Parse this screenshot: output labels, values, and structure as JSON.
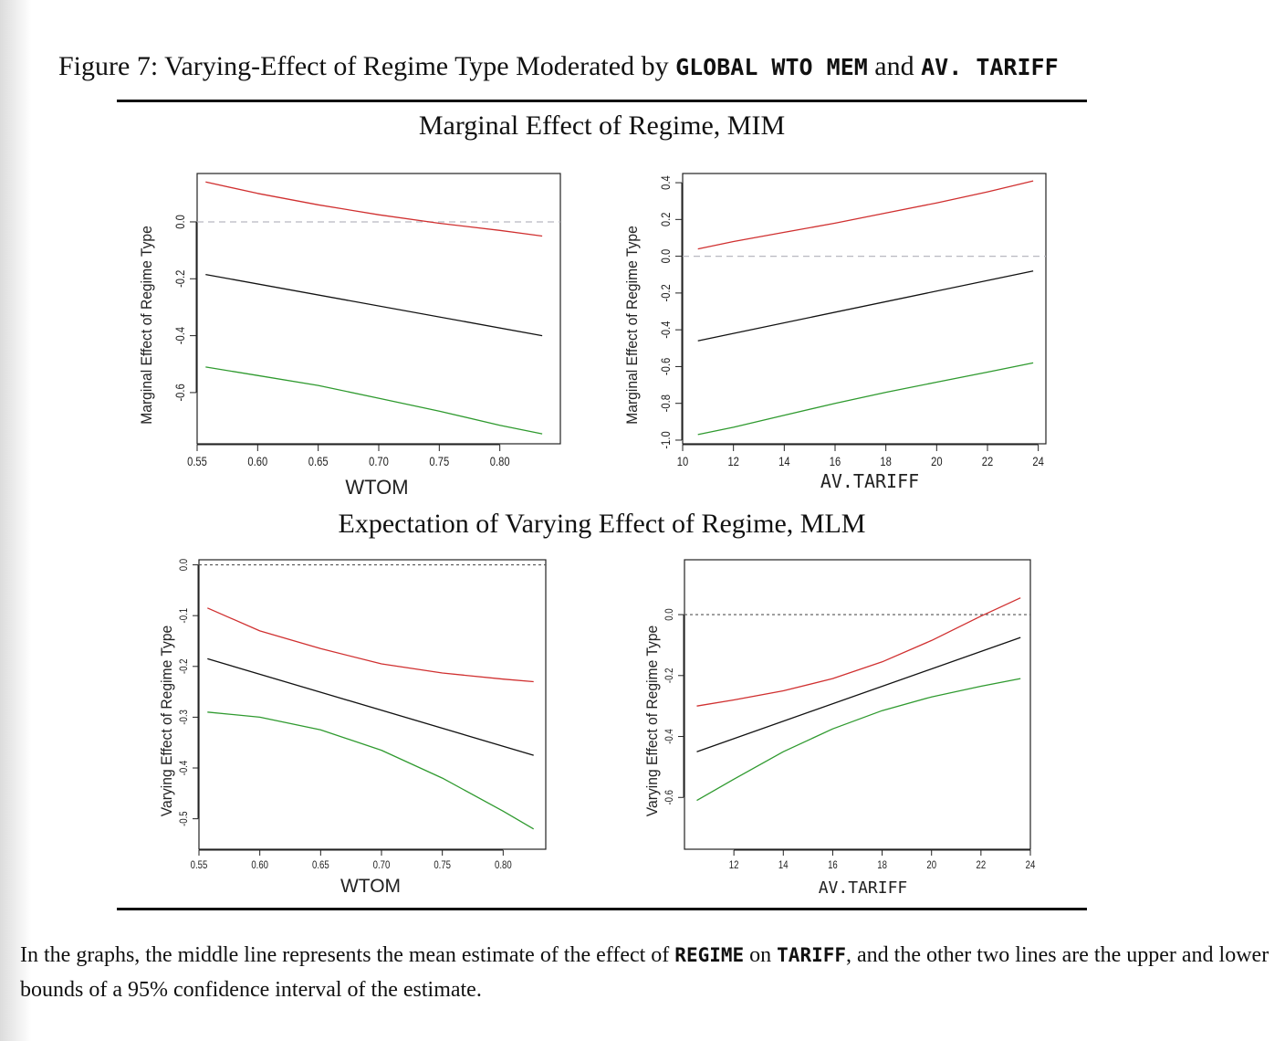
{
  "caption": {
    "prefix": "Figure 7: Varying-Effect of Regime Type Moderated by ",
    "var1": "GLOBAL WTO MEM",
    "and": " and ",
    "var2": "AV. TARIFF"
  },
  "section_titles": {
    "top": "Marginal Effect of Regime, MIM",
    "bottom": "Expectation of Varying Effect of Regime, MLM"
  },
  "footnote": {
    "part1": "In the graphs, the middle line represents the mean estimate of the effect of ",
    "var1": "REGIME",
    "part2": " on ",
    "var2": "TARIFF",
    "part3": ", and the other two lines are the upper and lower bounds of a 95% confidence interval of the estimate."
  },
  "colors": {
    "upper": "#d03030",
    "mean": "#111111",
    "lower": "#2f9a2f",
    "ref": "#b8b8c0",
    "ref_dark": "#555555"
  },
  "chart_data": [
    {
      "type": "line",
      "xlabel": "WTOM",
      "ylabel": "Marginal Effect of Regime Type",
      "xlim": [
        0.55,
        0.85
      ],
      "ylim": [
        -0.78,
        0.17
      ],
      "xticks": [
        0.55,
        0.6,
        0.65,
        0.7,
        0.75,
        0.8
      ],
      "xtick_labels": [
        "0.55",
        "0.60",
        "0.65",
        "0.70",
        "0.75",
        "0.80"
      ],
      "yticks": [
        -0.6,
        -0.4,
        -0.2,
        0.0
      ],
      "ytick_labels": [
        "-0.6",
        "-0.4",
        "-0.2",
        "0.0"
      ],
      "reference_line": 0.0,
      "series": [
        {
          "role": "upper",
          "x": [
            0.557,
            0.6,
            0.65,
            0.7,
            0.75,
            0.8,
            0.835
          ],
          "y": [
            0.14,
            0.1,
            0.06,
            0.025,
            -0.005,
            -0.03,
            -0.05
          ]
        },
        {
          "role": "mean",
          "x": [
            0.557,
            0.835
          ],
          "y": [
            -0.185,
            -0.4
          ]
        },
        {
          "role": "lower",
          "x": [
            0.557,
            0.6,
            0.65,
            0.7,
            0.75,
            0.8,
            0.835
          ],
          "y": [
            -0.51,
            -0.54,
            -0.575,
            -0.62,
            -0.665,
            -0.715,
            -0.745
          ]
        }
      ]
    },
    {
      "type": "line",
      "xlabel": "AV.TARIFF",
      "ylabel": "Marginal Effect of Regime Type",
      "xlim": [
        10,
        24.3
      ],
      "ylim": [
        -1.02,
        0.45
      ],
      "xticks": [
        10,
        12,
        14,
        16,
        18,
        20,
        22,
        24
      ],
      "xtick_labels": [
        "10",
        "12",
        "14",
        "16",
        "18",
        "20",
        "22",
        "24"
      ],
      "yticks": [
        -1.0,
        -0.8,
        -0.6,
        -0.4,
        -0.2,
        0.0,
        0.2,
        0.4
      ],
      "ytick_labels": [
        "-1.0",
        "-0.8",
        "-0.6",
        "-0.4",
        "-0.2",
        "0.0",
        "0.2",
        "0.4"
      ],
      "reference_line": 0.0,
      "series": [
        {
          "role": "upper",
          "x": [
            10.6,
            12,
            14,
            16,
            18,
            20,
            22,
            23.8
          ],
          "y": [
            0.04,
            0.08,
            0.13,
            0.18,
            0.235,
            0.29,
            0.35,
            0.41
          ]
        },
        {
          "role": "mean",
          "x": [
            10.6,
            23.8
          ],
          "y": [
            -0.46,
            -0.08
          ]
        },
        {
          "role": "lower",
          "x": [
            10.6,
            12,
            14,
            16,
            18,
            20,
            22,
            23.8
          ],
          "y": [
            -0.97,
            -0.93,
            -0.865,
            -0.8,
            -0.74,
            -0.685,
            -0.63,
            -0.58
          ]
        }
      ]
    },
    {
      "type": "line",
      "xlabel": "WTOM",
      "ylabel": "Varying Effect of Regime Type",
      "xlim": [
        0.55,
        0.835
      ],
      "ylim": [
        -0.56,
        0.01
      ],
      "xticks": [
        0.55,
        0.6,
        0.65,
        0.7,
        0.75,
        0.8
      ],
      "xtick_labels": [
        "0.55",
        "0.60",
        "0.65",
        "0.70",
        "0.75",
        "0.80"
      ],
      "yticks": [
        -0.5,
        -0.4,
        -0.3,
        -0.2,
        -0.1,
        0.0
      ],
      "ytick_labels": [
        "-0.5",
        "-0.4",
        "-0.3",
        "-0.2",
        "-0.1",
        "0.0"
      ],
      "reference_line": 0.0,
      "series": [
        {
          "role": "upper",
          "x": [
            0.557,
            0.6,
            0.65,
            0.7,
            0.75,
            0.8,
            0.825
          ],
          "y": [
            -0.085,
            -0.13,
            -0.165,
            -0.195,
            -0.213,
            -0.225,
            -0.23
          ]
        },
        {
          "role": "mean",
          "x": [
            0.557,
            0.825
          ],
          "y": [
            -0.185,
            -0.375
          ]
        },
        {
          "role": "lower",
          "x": [
            0.557,
            0.6,
            0.65,
            0.7,
            0.75,
            0.8,
            0.825
          ],
          "y": [
            -0.29,
            -0.3,
            -0.325,
            -0.365,
            -0.42,
            -0.485,
            -0.52
          ]
        }
      ]
    },
    {
      "type": "line",
      "xlabel": "AV.TARIFF",
      "ylabel": "Varying Effect of Regime Type",
      "xlim": [
        10,
        24
      ],
      "ylim": [
        -0.77,
        0.18
      ],
      "xticks": [
        12,
        14,
        16,
        18,
        20,
        22,
        24
      ],
      "xtick_labels": [
        "12",
        "14",
        "16",
        "18",
        "20",
        "22",
        "24"
      ],
      "yticks": [
        -0.6,
        -0.4,
        -0.2,
        0.0
      ],
      "ytick_labels": [
        "-0.6",
        "-0.4",
        "-0.2",
        "0.0"
      ],
      "reference_line": 0.0,
      "series": [
        {
          "role": "upper",
          "x": [
            10.5,
            12,
            14,
            16,
            18,
            20,
            22,
            23.6
          ],
          "y": [
            -0.3,
            -0.28,
            -0.25,
            -0.21,
            -0.155,
            -0.085,
            -0.005,
            0.055
          ]
        },
        {
          "role": "mean",
          "x": [
            10.5,
            23.6
          ],
          "y": [
            -0.45,
            -0.075
          ]
        },
        {
          "role": "lower",
          "x": [
            10.5,
            12,
            14,
            16,
            18,
            20,
            22,
            23.6
          ],
          "y": [
            -0.61,
            -0.54,
            -0.45,
            -0.375,
            -0.315,
            -0.27,
            -0.235,
            -0.21
          ]
        }
      ]
    }
  ]
}
